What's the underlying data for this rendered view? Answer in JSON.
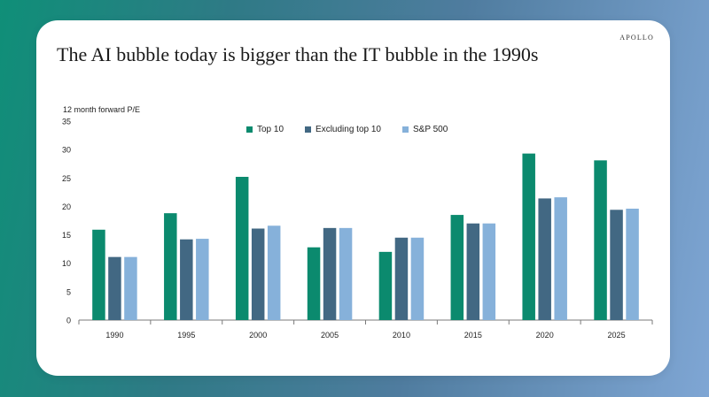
{
  "header": {
    "title": "The AI bubble today is bigger than the IT bubble in the 1990s",
    "brand": "APOLLO"
  },
  "colors": {
    "top10": "#0b8a6e",
    "excl_top10": "#426883",
    "sp500": "#86b1da",
    "axis": "#7a7a7a"
  },
  "chart_data": {
    "type": "bar",
    "ylabel": "12 month forward P/E",
    "xlabel": "",
    "ylim": [
      0,
      35
    ],
    "yticks": [
      0,
      5,
      10,
      15,
      20,
      25,
      30,
      35
    ],
    "categories": [
      "1990",
      "1995",
      "2000",
      "2005",
      "2010",
      "2015",
      "2020",
      "2025"
    ],
    "legend_position": "top",
    "grid": false,
    "series": [
      {
        "name": "Top 10",
        "values": [
          15.9,
          18.8,
          25.2,
          12.8,
          12.0,
          18.5,
          29.3,
          28.1
        ]
      },
      {
        "name": "Excluding top 10",
        "values": [
          11.1,
          14.2,
          16.1,
          16.2,
          14.5,
          17.0,
          21.4,
          19.4
        ]
      },
      {
        "name": "S&P 500",
        "values": [
          11.1,
          14.3,
          16.6,
          16.2,
          14.5,
          17.0,
          21.6,
          19.6
        ]
      }
    ]
  }
}
